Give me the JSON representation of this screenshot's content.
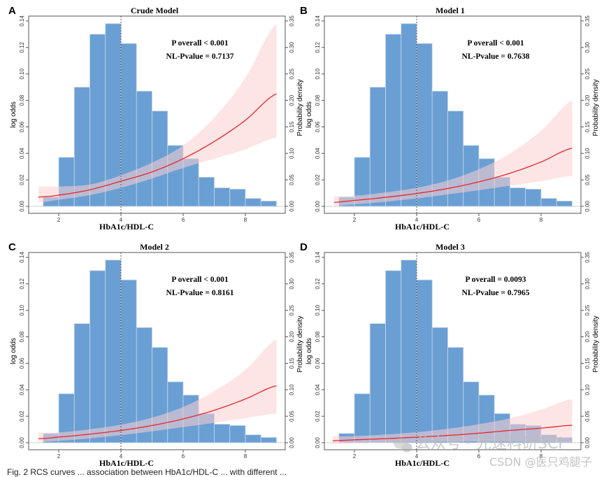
{
  "figure": {
    "caption_fragment": "Fig. 2 RCS curves ... association between HbA1c/HDL-C ... with different ...",
    "watermark_line1": "公众号 · 光速科研SCI",
    "watermark_line2": "CSDN @医只鸡腿子"
  },
  "chart_data": [
    {
      "type": "bar+line",
      "panel_letter": "A",
      "title": "Crude Model",
      "xlabel": "HbA1c/HDL-C",
      "ylabel": "log odds",
      "y2label": "Probability density",
      "xlim": [
        1.25,
        9.1
      ],
      "xticks": [
        2,
        4,
        6,
        8
      ],
      "ylim": [
        0,
        0.14
      ],
      "yticks": [
        "0.00",
        "0.02",
        "0.04",
        "0.06",
        "0.08",
        "0.10",
        "0.12",
        "0.14"
      ],
      "y2lim": [
        0,
        0.35
      ],
      "y2ticks": [
        "0.00",
        "0.05",
        "0.10",
        "0.15",
        "0.20",
        "0.25",
        "0.30",
        "0.35"
      ],
      "reference_x": 4,
      "annotations": [
        "P overall < 0.001",
        "NL-Pvalue = 0.7137"
      ],
      "histogram": {
        "bin_edges": [
          1.5,
          2,
          2.5,
          3,
          3.5,
          4,
          4.5,
          5,
          5.5,
          6,
          6.5,
          7,
          7.5,
          8,
          8.5,
          9
        ],
        "density": [
          0.0175,
          0.0925,
          0.225,
          0.325,
          0.345,
          0.3075,
          0.2175,
          0.18,
          0.115,
          0.09,
          0.055,
          0.035,
          0.0325,
          0.015,
          0.01
        ]
      },
      "curve": {
        "x": [
          1.35,
          2,
          3,
          4,
          5,
          6,
          7,
          8,
          9
        ],
        "log_odds": [
          0.007,
          0.0085,
          0.0125,
          0.019,
          0.026,
          0.036,
          0.049,
          0.065,
          0.085
        ],
        "ci_lower": [
          0.003,
          0.005,
          0.0085,
          0.014,
          0.021,
          0.029,
          0.036,
          0.043,
          0.052
        ],
        "ci_upper": [
          0.015,
          0.015,
          0.0165,
          0.0235,
          0.033,
          0.046,
          0.067,
          0.097,
          0.138
        ]
      },
      "series_colors": {
        "histogram": "#6a9fd4",
        "curve": "#e8262a",
        "ci": "#fbd0d0"
      }
    },
    {
      "type": "bar+line",
      "panel_letter": "B",
      "title": "Model 1",
      "xlabel": "HbA1c/HDL-C",
      "ylabel": "log odds",
      "y2label": "Probability density",
      "xlim": [
        1.25,
        9.1
      ],
      "xticks": [
        2,
        4,
        6,
        8
      ],
      "ylim": [
        0,
        0.14
      ],
      "yticks": [
        "0.00",
        "0.02",
        "0.04",
        "0.06",
        "0.08",
        "0.10",
        "0.12",
        "0.14"
      ],
      "y2lim": [
        0,
        0.35
      ],
      "y2ticks": [
        "0.00",
        "0.05",
        "0.10",
        "0.15",
        "0.20",
        "0.25",
        "0.30",
        "0.35"
      ],
      "reference_x": 4,
      "annotations": [
        "P overall < 0.001",
        "NL-Pvalue = 0.7638"
      ],
      "histogram": {
        "bin_edges": [
          1.5,
          2,
          2.5,
          3,
          3.5,
          4,
          4.5,
          5,
          5.5,
          6,
          6.5,
          7,
          7.5,
          8,
          8.5,
          9
        ],
        "density": [
          0.0175,
          0.0925,
          0.225,
          0.325,
          0.345,
          0.3075,
          0.2175,
          0.18,
          0.115,
          0.09,
          0.055,
          0.035,
          0.0325,
          0.015,
          0.01
        ]
      },
      "curve": {
        "x": [
          1.35,
          2,
          3,
          4,
          5,
          6,
          7,
          8,
          9
        ],
        "log_odds": [
          0.003,
          0.0045,
          0.0068,
          0.0097,
          0.0135,
          0.0185,
          0.025,
          0.0335,
          0.044
        ],
        "ci_lower": [
          0.0005,
          0.0015,
          0.0035,
          0.006,
          0.009,
          0.0122,
          0.0155,
          0.019,
          0.023
        ],
        "ci_upper": [
          0.0075,
          0.008,
          0.0105,
          0.014,
          0.0195,
          0.028,
          0.04,
          0.057,
          0.08
        ]
      },
      "series_colors": {
        "histogram": "#6a9fd4",
        "curve": "#e8262a",
        "ci": "#fbd0d0"
      }
    },
    {
      "type": "bar+line",
      "panel_letter": "C",
      "title": "Model 2",
      "xlabel": "HbA1c/HDL-C",
      "ylabel": "log odds",
      "y2label": "Probability density",
      "xlim": [
        1.25,
        9.1
      ],
      "xticks": [
        2,
        4,
        6,
        8
      ],
      "ylim": [
        0,
        0.14
      ],
      "yticks": [
        "0.00",
        "0.02",
        "0.04",
        "0.06",
        "0.08",
        "0.10",
        "0.12",
        "0.14"
      ],
      "y2lim": [
        0,
        0.35
      ],
      "y2ticks": [
        "0.00",
        "0.05",
        "0.10",
        "0.15",
        "0.20",
        "0.25",
        "0.30",
        "0.35"
      ],
      "reference_x": 4,
      "annotations": [
        "P overall < 0.001",
        "NL-Pvalue = 0.8161"
      ],
      "histogram": {
        "bin_edges": [
          1.5,
          2,
          2.5,
          3,
          3.5,
          4,
          4.5,
          5,
          5.5,
          6,
          6.5,
          7,
          7.5,
          8,
          8.5,
          9
        ],
        "density": [
          0.0175,
          0.0925,
          0.225,
          0.325,
          0.345,
          0.3075,
          0.2175,
          0.18,
          0.115,
          0.09,
          0.055,
          0.035,
          0.0325,
          0.015,
          0.01
        ]
      },
      "curve": {
        "x": [
          1.35,
          2,
          3,
          4,
          5,
          6,
          7,
          8,
          9
        ],
        "log_odds": [
          0.003,
          0.0043,
          0.0065,
          0.0093,
          0.013,
          0.018,
          0.0245,
          0.033,
          0.043
        ],
        "ci_lower": [
          0.0005,
          0.0014,
          0.0033,
          0.0057,
          0.0086,
          0.0118,
          0.015,
          0.0185,
          0.022
        ],
        "ci_upper": [
          0.0075,
          0.0078,
          0.0102,
          0.0136,
          0.019,
          0.027,
          0.039,
          0.055,
          0.078
        ]
      },
      "series_colors": {
        "histogram": "#6a9fd4",
        "curve": "#e8262a",
        "ci": "#fbd0d0"
      }
    },
    {
      "type": "bar+line",
      "panel_letter": "D",
      "title": "Model 3",
      "xlabel": "HbA1c/HDL-C",
      "ylabel": "log odds",
      "y2label": "Probability density",
      "xlim": [
        1.25,
        9.1
      ],
      "xticks": [
        2,
        4,
        6,
        8
      ],
      "ylim": [
        0,
        0.14
      ],
      "yticks": [
        "0.00",
        "0.02",
        "0.04",
        "0.06",
        "0.08",
        "0.10",
        "0.12",
        "0.14"
      ],
      "y2lim": [
        0,
        0.35
      ],
      "y2ticks": [
        "0.00",
        "0.05",
        "0.10",
        "0.15",
        "0.20",
        "0.25",
        "0.30",
        "0.35"
      ],
      "reference_x": 4,
      "annotations": [
        "P overall = 0.0093",
        "NL-Pvalue = 0.7965"
      ],
      "histogram": {
        "bin_edges": [
          1.5,
          2,
          2.5,
          3,
          3.5,
          4,
          4.5,
          5,
          5.5,
          6,
          6.5,
          7,
          7.5,
          8,
          8.5,
          9
        ],
        "density": [
          0.0175,
          0.0925,
          0.225,
          0.325,
          0.345,
          0.3075,
          0.2175,
          0.18,
          0.115,
          0.09,
          0.055,
          0.035,
          0.0325,
          0.015,
          0.01
        ]
      },
      "curve": {
        "x": [
          1.3,
          2,
          3,
          4,
          5,
          6,
          7,
          8,
          9
        ],
        "log_odds": [
          0.0015,
          0.0022,
          0.0031,
          0.0042,
          0.0055,
          0.0072,
          0.0093,
          0.011,
          0.0132
        ],
        "ci_lower": [
          -0.001,
          -0.0005,
          0.0,
          0.0005,
          0.0008,
          0.001,
          0.0008,
          0.0005,
          0.0
        ],
        "ci_upper": [
          0.0048,
          0.005,
          0.0062,
          0.008,
          0.0105,
          0.014,
          0.0185,
          0.025,
          0.033
        ]
      },
      "series_colors": {
        "histogram": "#6a9fd4",
        "curve": "#e8262a",
        "ci": "#fbd0d0"
      }
    }
  ]
}
